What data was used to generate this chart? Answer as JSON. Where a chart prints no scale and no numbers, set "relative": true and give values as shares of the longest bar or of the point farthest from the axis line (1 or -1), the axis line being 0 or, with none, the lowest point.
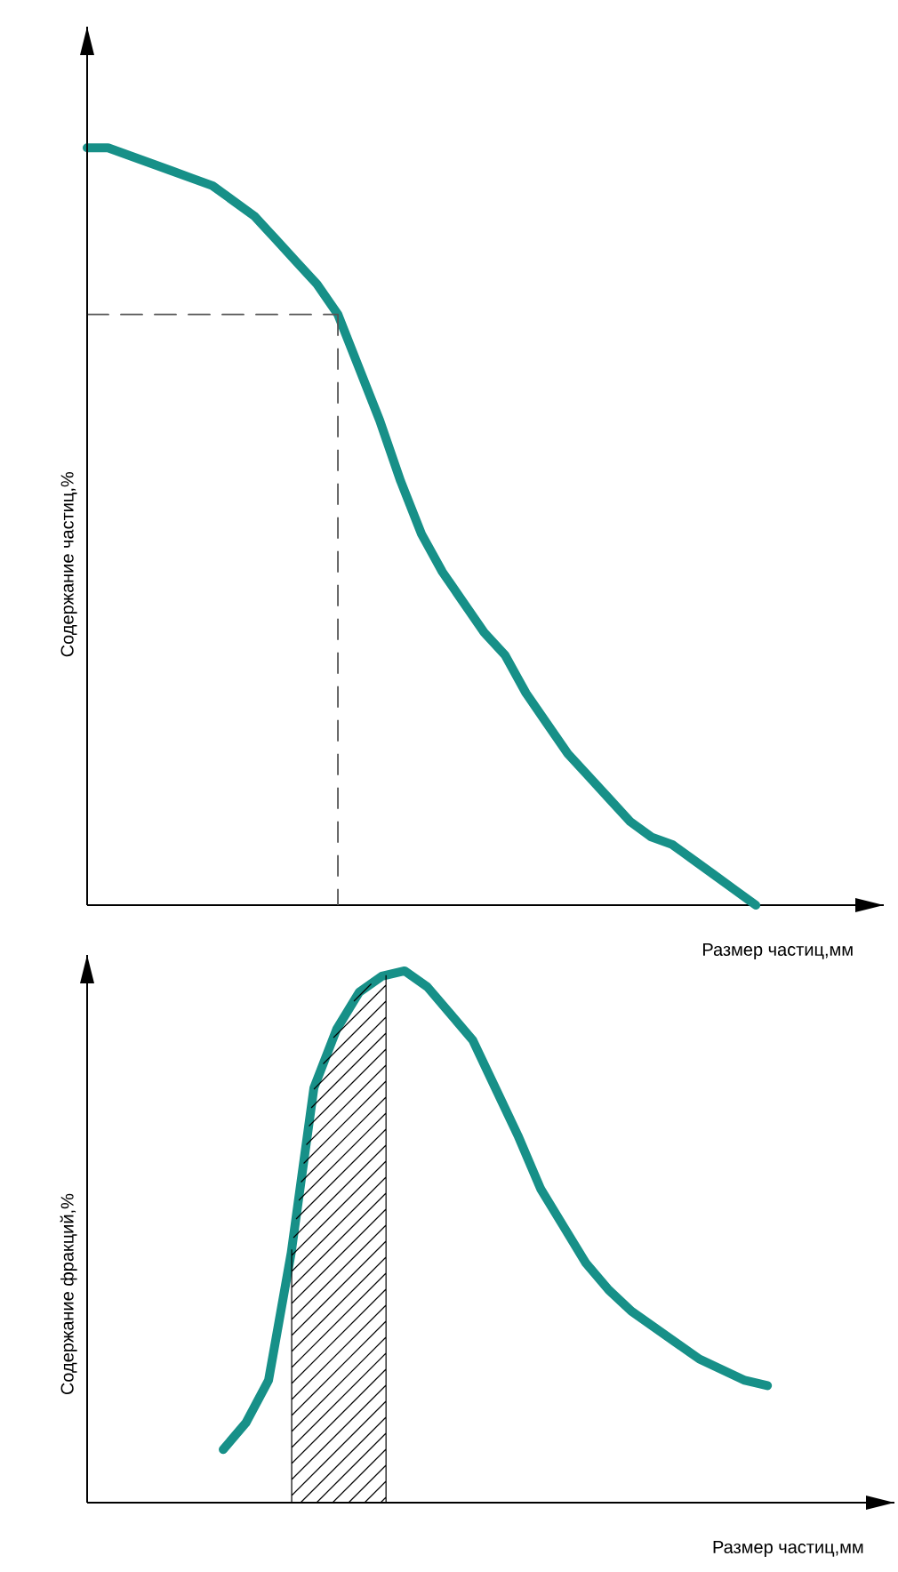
{
  "chart_data": [
    {
      "type": "line",
      "relative": true,
      "ylabel": "Содержание частиц,%",
      "xlabel": "Размер частиц,мм",
      "categories": [
        null,
        null,
        null,
        null,
        null,
        null,
        null,
        null,
        null,
        null,
        null,
        null,
        null,
        null,
        null,
        null,
        null,
        null,
        null,
        null,
        null,
        null,
        null,
        null,
        null,
        null,
        null,
        null,
        null,
        null,
        null,
        null,
        null
      ],
      "series": [
        {
          "color": "#179088",
          "values": [
            1,
            1,
            0.99,
            0.98,
            0.97,
            0.96,
            0.95,
            0.93,
            0.91,
            0.88,
            0.85,
            0.82,
            0.78,
            0.71,
            0.64,
            0.56,
            0.49,
            0.44,
            0.4,
            0.36,
            0.33,
            0.28,
            0.24,
            0.2,
            0.17,
            0.14,
            0.11,
            0.09,
            0.08,
            0.06,
            0.04,
            0.02,
            0
          ]
        },
        {
          "color": "#555555",
          "values": [
            0.78,
            0.78,
            0.78,
            0.78,
            0.78,
            0.78,
            0.78,
            0.78,
            0.78,
            0.78,
            0.78,
            0.78,
            0.78,
            null,
            null,
            null,
            null,
            null,
            null,
            null,
            null,
            null,
            null,
            null,
            null,
            null,
            null,
            null,
            null,
            null,
            null,
            null,
            null
          ],
          "line_style": "dashed"
        }
      ],
      "line_style": "solid",
      "marker": "none"
    },
    {
      "type": "line",
      "relative": true,
      "ylabel": "Содержание фракций,%",
      "xlabel": "Размер частиц,мм",
      "categories": [
        null,
        null,
        null,
        null,
        null,
        null,
        null,
        null,
        null,
        null,
        null,
        null,
        null,
        null,
        null,
        null,
        null,
        null,
        null,
        null,
        null,
        null,
        null,
        null,
        null,
        null,
        null,
        null,
        null,
        null,
        null
      ],
      "series": [
        {
          "color": "#179088",
          "values": [
            null,
            null,
            null,
            null,
            null,
            null,
            0.1,
            0.15,
            0.23,
            0.47,
            0.78,
            0.89,
            0.96,
            0.99,
            1,
            0.97,
            0.92,
            0.87,
            0.78,
            0.69,
            0.59,
            0.52,
            0.45,
            0.4,
            0.36,
            0.33,
            0.3,
            0.27,
            0.25,
            0.23,
            0.22
          ]
        }
      ],
      "line_style": "solid",
      "marker": "none"
    }
  ]
}
